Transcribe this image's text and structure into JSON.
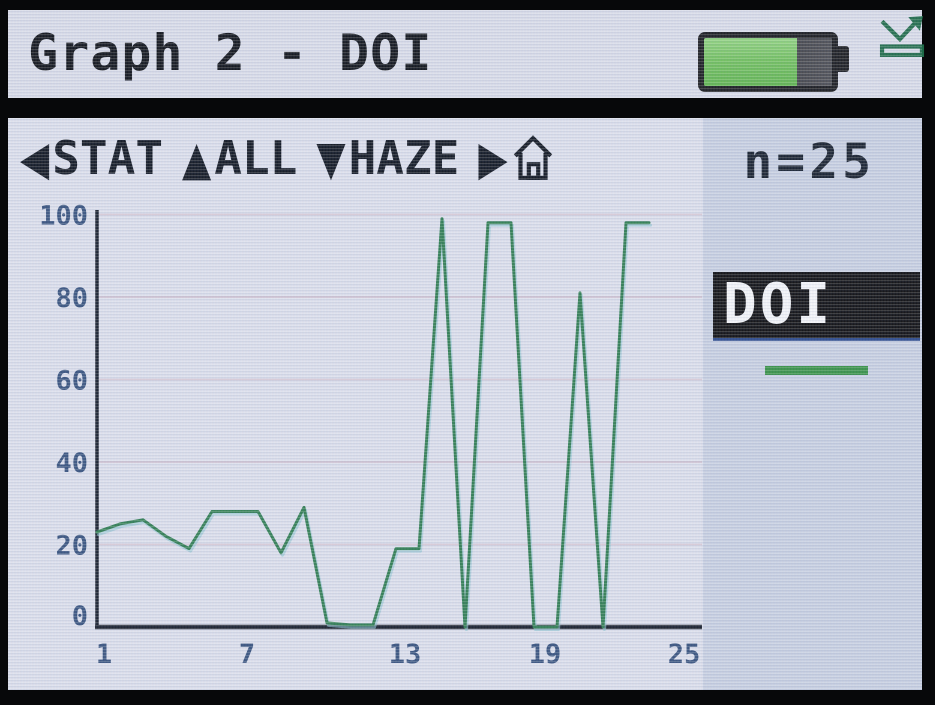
{
  "title_bar": {
    "title": "Graph 2 - DOI",
    "battery": {
      "level_percent": 73
    }
  },
  "toolbar": {
    "prev_icon": "◀",
    "stat_label": "STAT",
    "up_icon": "▲",
    "all_label": "ALL",
    "down_icon": "▼",
    "haze_label": "HAZE",
    "next_icon": "▶",
    "count_label": "n=25"
  },
  "legend": {
    "label": "DOI",
    "swatch_color": "#349044"
  },
  "colors": {
    "line": "#2e7d51",
    "line_shadow": "#8cc3cf",
    "battery_fill": "#6fbf5d",
    "screen_bg": "#dadeeb",
    "panel_bg": "#c6cfe1",
    "gridline": "#cfc0cf",
    "axis": "#161e2c",
    "tick_text": "#35517d"
  },
  "chart_data": {
    "type": "line",
    "title": "Graph 2 - DOI",
    "xlabel": "",
    "ylabel": "",
    "x": [
      1,
      2,
      3,
      4,
      5,
      6,
      7,
      8,
      9,
      10,
      11,
      12,
      13,
      14,
      15,
      16,
      17,
      18,
      19,
      20,
      21,
      22,
      23,
      24,
      25
    ],
    "values": [
      23,
      25,
      26,
      22,
      19,
      28,
      28,
      28,
      18,
      29,
      1,
      0.5,
      0.5,
      19,
      19,
      99,
      0,
      98,
      98,
      0,
      0,
      81,
      0,
      98,
      98
    ],
    "series_name": "DOI",
    "n": 25,
    "xlim": [
      1,
      25
    ],
    "ylim": [
      0,
      100
    ],
    "x_tick_labels": [
      1,
      7,
      13,
      19,
      25
    ],
    "y_tick_labels": [
      0,
      20,
      40,
      60,
      80,
      100
    ],
    "grid": "horizontal",
    "legend_position": "right"
  }
}
